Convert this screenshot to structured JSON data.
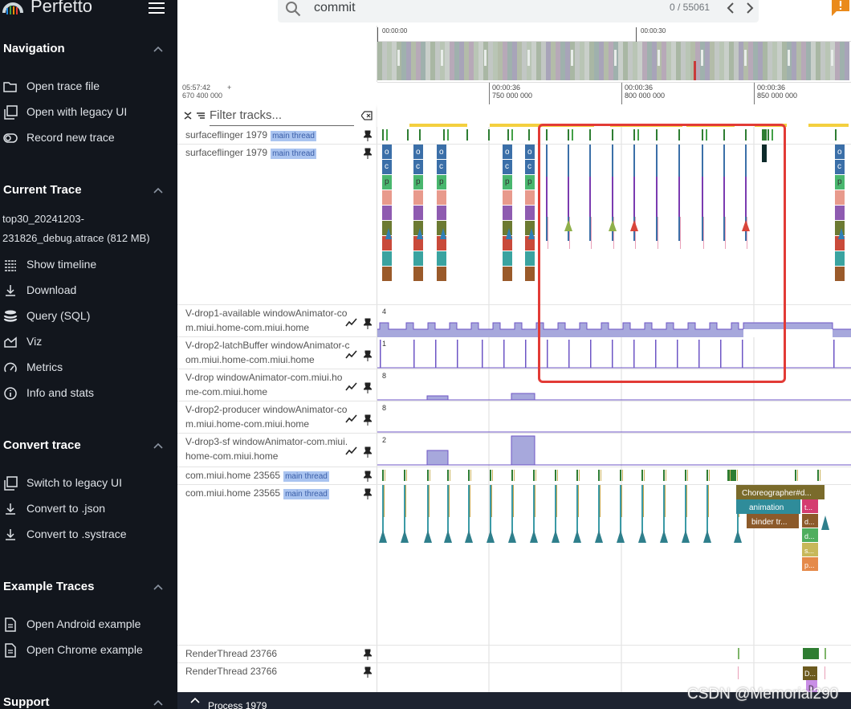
{
  "app": {
    "name": "Perfetto",
    "logo_icon": "perfetto-logo-icon",
    "menu_icon": "hamburger-menu-icon"
  },
  "search": {
    "query": "commit",
    "result_count": "0 / 55061"
  },
  "sidebar": {
    "navigation": {
      "title": "Navigation",
      "items": [
        {
          "label": "Open trace file",
          "icon": "folder-open-icon"
        },
        {
          "label": "Open with legacy UI",
          "icon": "filter-none-icon"
        },
        {
          "label": "Record new trace",
          "icon": "record-toggle-icon"
        }
      ]
    },
    "current_trace": {
      "title": "Current Trace",
      "file_name": "top30_20241203-231826_debug.atrace (812 MB)",
      "items": [
        {
          "label": "Show timeline",
          "icon": "timeline-icon"
        },
        {
          "label": "Download",
          "icon": "download-icon"
        },
        {
          "label": "Query (SQL)",
          "icon": "database-icon"
        },
        {
          "label": "Viz",
          "icon": "area-chart-icon"
        },
        {
          "label": "Metrics",
          "icon": "speed-gauge-icon"
        },
        {
          "label": "Info and stats",
          "icon": "info-icon"
        }
      ]
    },
    "convert_trace": {
      "title": "Convert trace",
      "items": [
        {
          "label": "Switch to legacy UI",
          "icon": "filter-none-icon"
        },
        {
          "label": "Convert to .json",
          "icon": "download-icon"
        },
        {
          "label": "Convert to .systrace",
          "icon": "download-icon"
        }
      ]
    },
    "example_traces": {
      "title": "Example Traces",
      "items": [
        {
          "label": "Open Android example",
          "icon": "description-icon"
        },
        {
          "label": "Open Chrome example",
          "icon": "description-icon"
        }
      ]
    },
    "support": {
      "title": "Support"
    }
  },
  "overview": {
    "ticks": [
      "00:00:00",
      "00:00:30"
    ]
  },
  "time_axis": {
    "offset_time": "05:57:42",
    "offset_plus": "+",
    "offset_ns": "670 400 000",
    "ticks": [
      {
        "time": "00:00:36",
        "ns": "750 000 000"
      },
      {
        "time": "00:00:36",
        "ns": "800 000 000"
      },
      {
        "time": "00:00:36",
        "ns": "850 000 000"
      }
    ]
  },
  "filter": {
    "placeholder": "Filter tracks..."
  },
  "tracks": [
    {
      "name": "surfaceflinger 1979",
      "tag": "main thread"
    },
    {
      "name": "surfaceflinger 1979",
      "tag": "main thread"
    },
    {
      "name": "V-drop1-available windowAnimator-com.miui.home-com.miui.home",
      "max": "4"
    },
    {
      "name": "V-drop2-latchBuffer windowAnimator-com.miui.home-com.miui.home",
      "max": "1"
    },
    {
      "name": "V-drop windowAnimator-com.miui.home-com.miui.home",
      "max": "8"
    },
    {
      "name": "V-drop2-producer windowAnimator-com.miui.home-com.miui.home",
      "max": "8"
    },
    {
      "name": "V-drop3-sf windowAnimator-com.miui.home-com.miui.home",
      "max": "2"
    },
    {
      "name": "com.miui.home 23565",
      "tag": "main thread"
    },
    {
      "name": "com.miui.home 23565",
      "tag": "main thread"
    },
    {
      "name": "RenderThread 23766"
    },
    {
      "name": "RenderThread 23766"
    }
  ],
  "slices": {
    "sf_labels": [
      "o",
      "c",
      "p"
    ],
    "home": [
      "Choreographer#d...",
      "animation",
      "binder tr...",
      "t...",
      "d...",
      "d...",
      "s...",
      "p..."
    ],
    "render": [
      "D...",
      "D"
    ]
  },
  "bottom": {
    "process": "Process 1979"
  },
  "watermark": "CSDN @Memorial290",
  "colors": {
    "highlight_box": "#e23b36",
    "counter_fill": "#a7a8dc",
    "counter_line": "#6d55c5"
  }
}
